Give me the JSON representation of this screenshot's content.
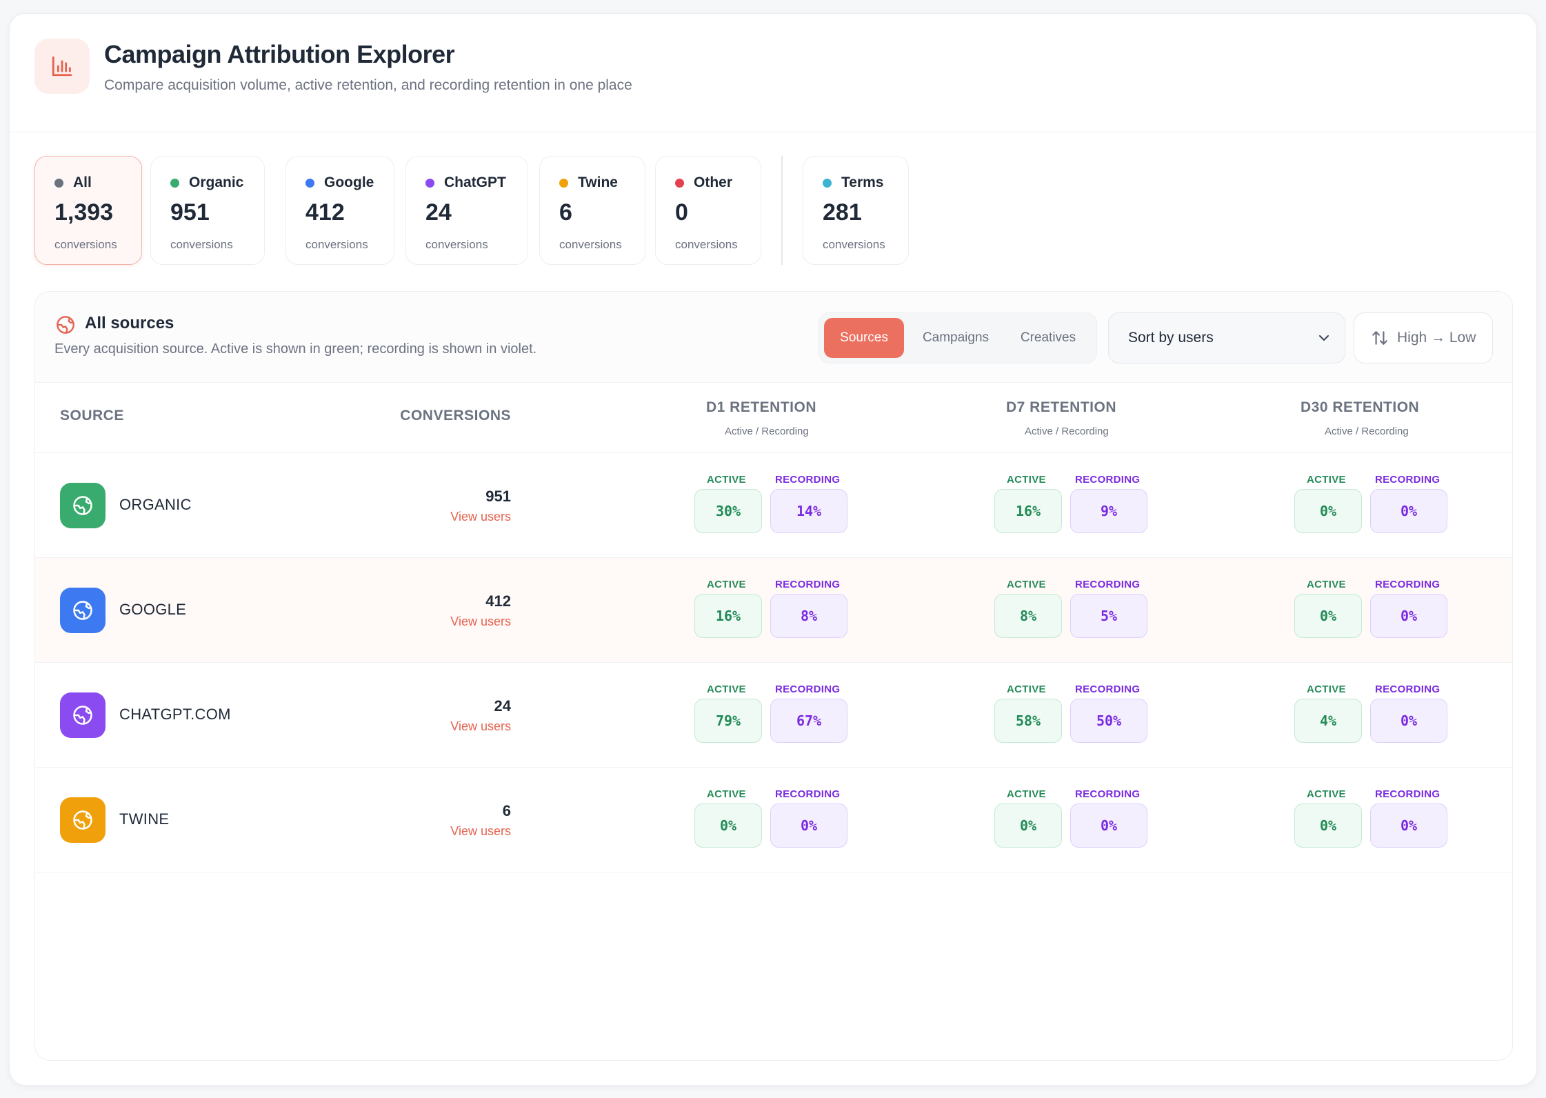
{
  "header": {
    "title": "Campaign Attribution Explorer",
    "subtitle": "Compare acquisition volume, active retention, and recording retention in one place"
  },
  "stats": [
    {
      "name": "All",
      "value": "1,393",
      "label": "conversions",
      "color": "#6b7280"
    },
    {
      "name": "Organic",
      "value": "951",
      "label": "conversions",
      "color": "#3aab6e"
    },
    {
      "name": "Google",
      "value": "412",
      "label": "conversions",
      "color": "#3d7af2"
    },
    {
      "name": "ChatGPT",
      "value": "24",
      "label": "conversions",
      "color": "#8a4cf0"
    },
    {
      "name": "Twine",
      "value": "6",
      "label": "conversions",
      "color": "#f0a00a"
    },
    {
      "name": "Other",
      "value": "0",
      "label": "conversions",
      "color": "#e5404f"
    },
    {
      "name": "Terms",
      "value": "281",
      "label": "conversions",
      "color": "#3bb3d4"
    }
  ],
  "panel": {
    "title": "All sources",
    "description": "Every acquisition source. Active is shown in green; recording is shown in violet.",
    "tabs": [
      "Sources",
      "Campaigns",
      "Creatives"
    ],
    "active_tab": "Sources",
    "sort_label": "Sort by users",
    "order_label": "High → Low"
  },
  "table": {
    "headers": {
      "source": "SOURCE",
      "conversions": "CONVERSIONS",
      "d1": "D1 RETENTION",
      "d7": "D7 RETENTION",
      "d30": "D30 RETENTION",
      "sub": "Active / Recording"
    },
    "active_label": "ACTIVE",
    "recording_label": "RECORDING",
    "view_users": "View users",
    "rows": [
      {
        "source": "ORGANIC",
        "conversions": "951",
        "color": "#3aab6e",
        "d1": {
          "active": "30%",
          "recording": "14%"
        },
        "d7": {
          "active": "16%",
          "recording": "9%"
        },
        "d30": {
          "active": "0%",
          "recording": "0%"
        }
      },
      {
        "source": "GOOGLE",
        "conversions": "412",
        "color": "#3d7af2",
        "d1": {
          "active": "16%",
          "recording": "8%"
        },
        "d7": {
          "active": "8%",
          "recording": "5%"
        },
        "d30": {
          "active": "0%",
          "recording": "0%"
        }
      },
      {
        "source": "CHATGPT.COM",
        "conversions": "24",
        "color": "#8a4cf0",
        "d1": {
          "active": "79%",
          "recording": "67%"
        },
        "d7": {
          "active": "58%",
          "recording": "50%"
        },
        "d30": {
          "active": "4%",
          "recording": "0%"
        }
      },
      {
        "source": "TWINE",
        "conversions": "6",
        "color": "#f0a00a",
        "d1": {
          "active": "0%",
          "recording": "0%"
        },
        "d7": {
          "active": "0%",
          "recording": "0%"
        },
        "d30": {
          "active": "0%",
          "recording": "0%"
        }
      }
    ]
  }
}
